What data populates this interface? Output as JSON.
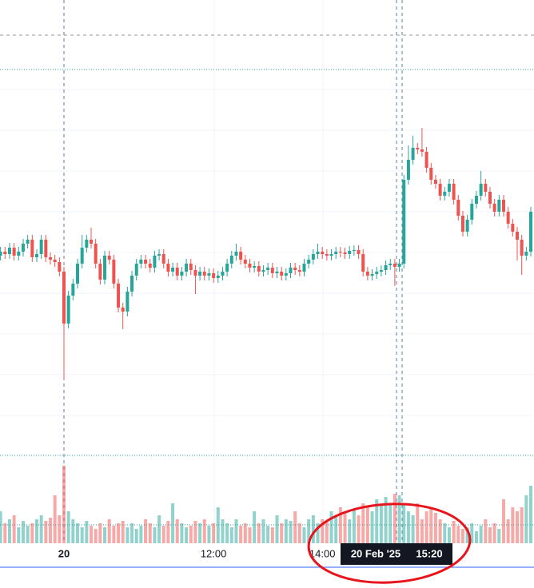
{
  "chart_data": {
    "type": "candlestick",
    "categories": [
      null,
      null,
      null,
      null,
      null,
      null,
      null,
      null,
      null,
      null,
      null,
      null,
      null,
      null,
      "20",
      null,
      null,
      null,
      null,
      null,
      null,
      null,
      null,
      null,
      null,
      null,
      null,
      null,
      null,
      null,
      null,
      null,
      null,
      null,
      null,
      null,
      null,
      null,
      null,
      null,
      null,
      null,
      null,
      null,
      null,
      null,
      null,
      "12:00",
      null,
      null,
      null,
      null,
      null,
      null,
      null,
      null,
      null,
      null,
      null,
      null,
      null,
      null,
      null,
      null,
      null,
      null,
      null,
      null,
      null,
      null,
      null,
      "14:00",
      null,
      null,
      null,
      null,
      null,
      null,
      null,
      null,
      null,
      null,
      null,
      null,
      null,
      null,
      null,
      null,
      null,
      null,
      null,
      null,
      null,
      null,
      null,
      null,
      null,
      null,
      null,
      null,
      null,
      null,
      null,
      null,
      null,
      null,
      null,
      null,
      null,
      null,
      null,
      null,
      null,
      null,
      null,
      null,
      null,
      null
    ],
    "ohlc": [
      [
        360,
        371,
        354,
        365
      ],
      [
        365,
        371,
        356,
        362
      ],
      [
        362,
        376,
        356,
        370
      ],
      [
        370,
        376,
        354,
        360
      ],
      [
        360,
        371,
        354,
        365
      ],
      [
        365,
        381,
        359,
        375
      ],
      [
        375,
        386,
        369,
        380
      ],
      [
        380,
        386,
        352,
        358
      ],
      [
        358,
        368,
        352,
        362
      ],
      [
        362,
        386,
        356,
        380
      ],
      [
        380,
        386,
        352,
        358
      ],
      [
        358,
        364,
        349,
        355
      ],
      [
        355,
        361,
        346,
        352
      ],
      [
        352,
        358,
        334,
        340
      ],
      [
        340,
        346,
        205,
        275
      ],
      [
        275,
        316,
        269,
        310
      ],
      [
        310,
        331,
        304,
        325
      ],
      [
        325,
        356,
        319,
        350
      ],
      [
        350,
        386,
        344,
        370
      ],
      [
        370,
        386,
        364,
        380
      ],
      [
        380,
        395,
        369,
        375
      ],
      [
        375,
        381,
        344,
        350
      ],
      [
        350,
        356,
        324,
        330
      ],
      [
        330,
        366,
        324,
        360
      ],
      [
        360,
        366,
        349,
        355
      ],
      [
        355,
        361,
        319,
        325
      ],
      [
        325,
        331,
        289,
        295
      ],
      [
        295,
        301,
        268,
        290
      ],
      [
        290,
        321,
        284,
        315
      ],
      [
        315,
        341,
        309,
        335
      ],
      [
        335,
        356,
        329,
        350
      ],
      [
        350,
        361,
        344,
        355
      ],
      [
        355,
        361,
        344,
        350
      ],
      [
        350,
        356,
        339,
        345
      ],
      [
        345,
        366,
        339,
        360
      ],
      [
        360,
        368,
        354,
        362
      ],
      [
        362,
        368,
        344,
        350
      ],
      [
        350,
        356,
        334,
        340
      ],
      [
        340,
        351,
        334,
        345
      ],
      [
        345,
        351,
        329,
        335
      ],
      [
        335,
        346,
        329,
        340
      ],
      [
        340,
        356,
        334,
        350
      ],
      [
        350,
        356,
        336,
        342
      ],
      [
        342,
        348,
        312,
        335
      ],
      [
        335,
        346,
        329,
        340
      ],
      [
        340,
        346,
        329,
        335
      ],
      [
        335,
        344,
        329,
        338
      ],
      [
        338,
        344,
        326,
        332
      ],
      [
        332,
        341,
        326,
        335
      ],
      [
        335,
        346,
        329,
        340
      ],
      [
        340,
        356,
        334,
        350
      ],
      [
        350,
        366,
        344,
        360
      ],
      [
        360,
        375,
        354,
        365
      ],
      [
        365,
        371,
        349,
        355
      ],
      [
        355,
        361,
        344,
        350
      ],
      [
        350,
        356,
        339,
        345
      ],
      [
        345,
        353,
        339,
        347
      ],
      [
        347,
        353,
        334,
        340
      ],
      [
        340,
        348,
        334,
        342
      ],
      [
        342,
        351,
        336,
        345
      ],
      [
        345,
        351,
        332,
        338
      ],
      [
        338,
        346,
        332,
        340
      ],
      [
        340,
        346,
        329,
        335
      ],
      [
        335,
        344,
        329,
        338
      ],
      [
        338,
        351,
        332,
        345
      ],
      [
        345,
        351,
        336,
        342
      ],
      [
        342,
        348,
        334,
        340
      ],
      [
        340,
        356,
        334,
        350
      ],
      [
        350,
        361,
        344,
        355
      ],
      [
        355,
        368,
        349,
        362
      ],
      [
        362,
        375,
        356,
        365
      ],
      [
        365,
        371,
        356,
        362
      ],
      [
        362,
        368,
        354,
        360
      ],
      [
        360,
        368,
        354,
        362
      ],
      [
        362,
        371,
        356,
        365
      ],
      [
        365,
        371,
        358,
        364
      ],
      [
        364,
        370,
        356,
        362
      ],
      [
        362,
        372,
        356,
        366
      ],
      [
        366,
        373,
        360,
        367
      ],
      [
        367,
        373,
        356,
        362
      ],
      [
        362,
        368,
        334,
        340
      ],
      [
        340,
        346,
        329,
        335
      ],
      [
        335,
        343,
        329,
        337
      ],
      [
        337,
        346,
        331,
        340
      ],
      [
        340,
        348,
        334,
        342
      ],
      [
        342,
        354,
        336,
        348
      ],
      [
        348,
        356,
        342,
        350
      ],
      [
        350,
        356,
        322,
        346
      ],
      [
        346,
        356,
        340,
        350
      ],
      [
        350,
        461,
        344,
        455
      ],
      [
        455,
        498,
        449,
        480
      ],
      [
        480,
        510,
        474,
        495
      ],
      [
        495,
        501,
        487,
        493
      ],
      [
        493,
        520,
        484,
        490
      ],
      [
        490,
        496,
        464,
        470
      ],
      [
        470,
        476,
        449,
        455
      ],
      [
        455,
        461,
        444,
        450
      ],
      [
        450,
        456,
        429,
        435
      ],
      [
        435,
        446,
        429,
        440
      ],
      [
        440,
        456,
        434,
        450
      ],
      [
        450,
        456,
        424,
        430
      ],
      [
        430,
        436,
        404,
        410
      ],
      [
        410,
        416,
        384,
        390
      ],
      [
        390,
        411,
        384,
        405
      ],
      [
        405,
        431,
        399,
        425
      ],
      [
        425,
        441,
        419,
        435
      ],
      [
        435,
        466,
        429,
        450
      ],
      [
        450,
        456,
        434,
        440
      ],
      [
        440,
        446,
        419,
        425
      ],
      [
        425,
        431,
        409,
        415
      ],
      [
        415,
        436,
        409,
        430
      ],
      [
        430,
        436,
        409,
        415
      ],
      [
        415,
        421,
        394,
        400
      ],
      [
        400,
        406,
        384,
        390
      ],
      [
        390,
        396,
        354,
        380
      ],
      [
        380,
        386,
        336,
        360
      ],
      [
        360,
        371,
        354,
        365
      ],
      [
        365,
        421,
        359,
        415
      ]
    ],
    "volume": [
      40,
      25,
      30,
      35,
      20,
      28,
      22,
      25,
      30,
      35,
      28,
      32,
      60,
      35,
      97,
      40,
      30,
      25,
      20,
      28,
      22,
      18,
      25,
      20,
      30,
      22,
      25,
      28,
      20,
      25,
      18,
      22,
      30,
      25,
      20,
      35,
      22,
      28,
      50,
      30,
      25,
      20,
      22,
      28,
      25,
      30,
      22,
      25,
      45,
      30,
      25,
      20,
      30,
      22,
      25,
      20,
      40,
      25,
      30,
      22,
      20,
      35,
      25,
      30,
      28,
      40,
      25,
      20,
      30,
      35,
      25,
      30,
      28,
      40,
      35,
      45,
      38,
      30,
      42,
      35,
      50,
      45,
      40,
      55,
      48,
      58,
      50,
      62,
      60,
      48,
      40,
      35,
      50,
      30,
      40,
      45,
      38,
      30,
      25,
      20,
      28,
      22,
      18,
      20,
      25,
      15,
      22,
      30,
      20,
      25,
      18,
      55,
      30,
      45,
      40,
      45,
      60,
      72
    ],
    "ylim": [
      0,
      680
    ],
    "volume_ylim": [
      0,
      100
    ],
    "up_color": "#26a69a",
    "down_color": "#ef5350",
    "crosshair": {
      "date": "20 Feb '25",
      "time": "15:20"
    }
  }
}
